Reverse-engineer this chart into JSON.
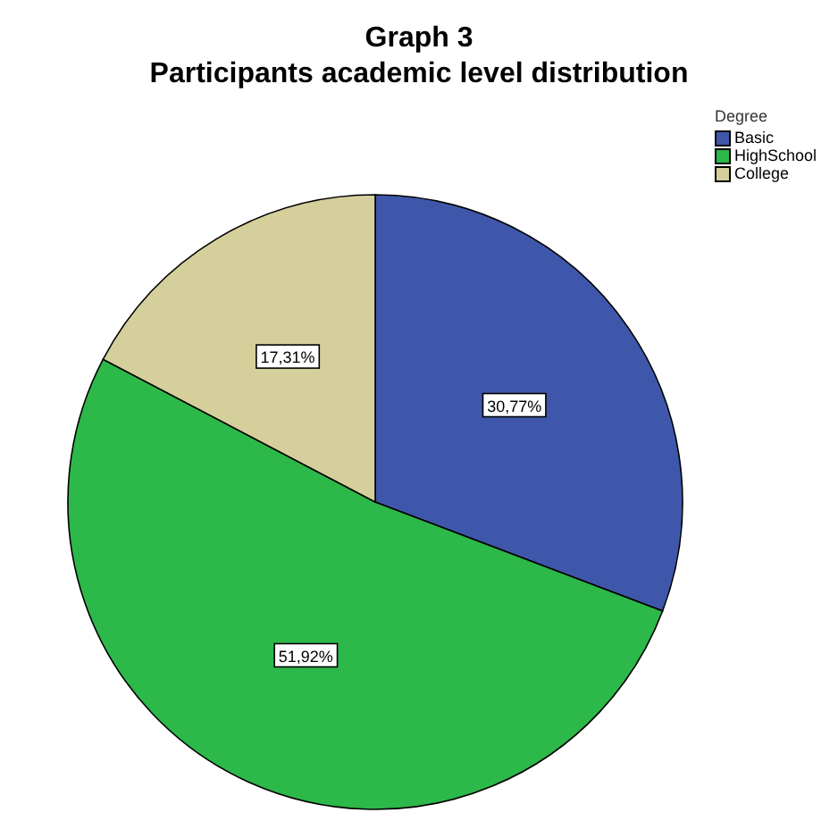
{
  "chart_data": {
    "type": "pie",
    "title": "Graph 3",
    "subtitle": "Participants academic level distribution",
    "legend_title": "Degree",
    "legend": "top right",
    "categories": [
      "Basic",
      "HighSchool",
      "College"
    ],
    "values": [
      30.77,
      51.92,
      17.31
    ],
    "colors": [
      "#3f57aa",
      "#2db84a",
      "#d5cf9b"
    ],
    "value_labels": [
      "30,77%",
      "51,92%",
      "17,31%"
    ]
  }
}
